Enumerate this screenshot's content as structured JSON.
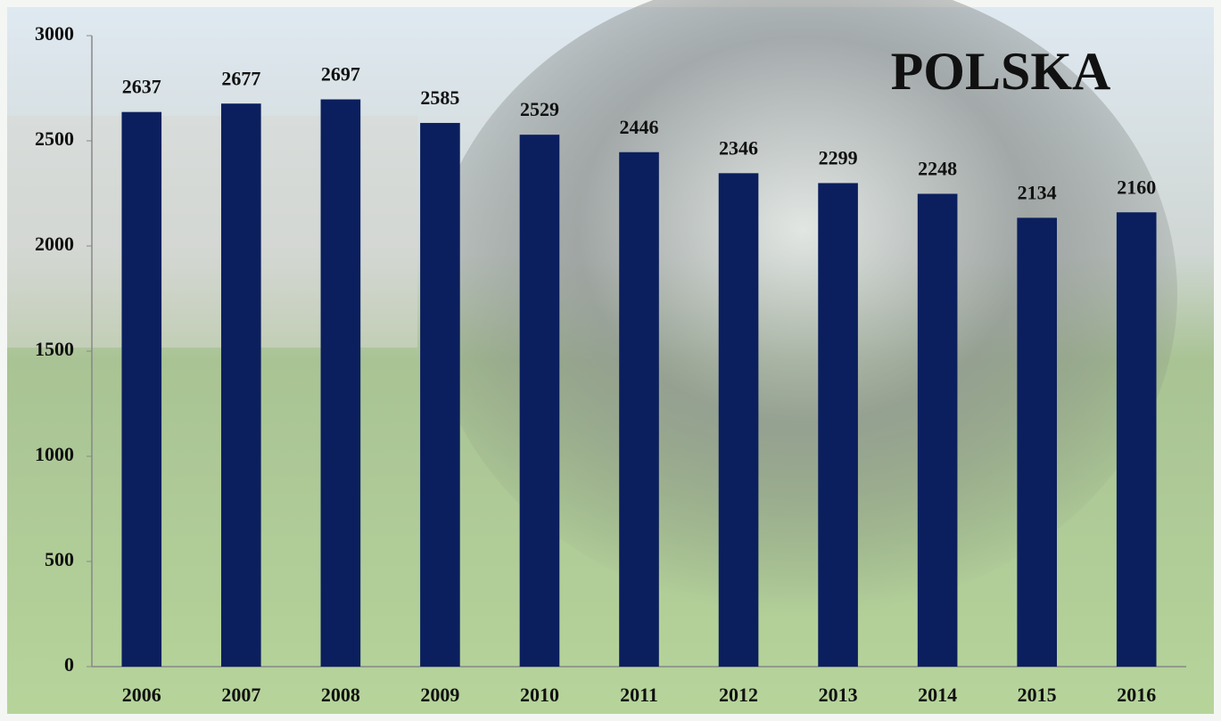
{
  "chart_data": {
    "type": "bar",
    "title": "POLSKA",
    "categories": [
      "2006",
      "2007",
      "2008",
      "2009",
      "2010",
      "2011",
      "2012",
      "2013",
      "2014",
      "2015",
      "2016"
    ],
    "values": [
      2637,
      2677,
      2697,
      2585,
      2529,
      2446,
      2346,
      2299,
      2248,
      2134,
      2160
    ],
    "color": "#0b1f5e",
    "ylim": [
      0,
      3000
    ],
    "yticks": [
      0,
      500,
      1000,
      1500,
      2000,
      2500,
      3000
    ],
    "grid": false
  }
}
